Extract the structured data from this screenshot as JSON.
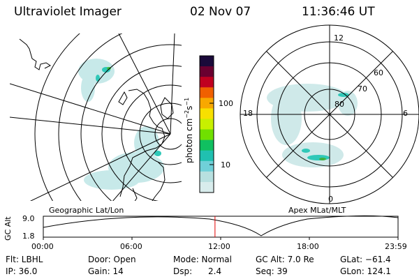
{
  "header": {
    "title": "Ultraviolet Imager",
    "date": "02 Nov 07",
    "time": "11:36:46 UT"
  },
  "left_panel": {
    "caption": "Geographic Lat/Lon"
  },
  "right_panel": {
    "caption": "Apex MLat/MLT",
    "lat_labels": [
      "80",
      "70",
      "60"
    ],
    "mlt_labels": {
      "top": "12",
      "bottom": "0",
      "left": "18",
      "right": "6"
    }
  },
  "colorbar": {
    "unit_label": "photon cm",
    "unit_exp1": "−2",
    "unit_s": "s",
    "unit_exp2": "−1",
    "ticks": [
      "100",
      "10"
    ],
    "colors": [
      "#1a0a3a",
      "#6a0030",
      "#c00020",
      "#f06000",
      "#f8a800",
      "#f8e000",
      "#c8f000",
      "#70e000",
      "#10c060",
      "#20c0b0",
      "#70d0d8",
      "#b8e0e0",
      "#d8ecec"
    ]
  },
  "altitude_plot": {
    "ylabel": "GC Alt",
    "y_top": "9.0",
    "y_bottom": "1.8",
    "x_ticks": [
      "00:00",
      "06:00",
      "12:00",
      "18:00",
      "23:59"
    ],
    "current_time_fraction": 0.484
  },
  "status": {
    "flt": "Flt: LBHL",
    "ip": "IP: 36.0",
    "door": "Door: Open",
    "gain": "Gain: 14",
    "mode": "Mode: Normal",
    "dsp_label": "Dsp:",
    "dsp_value": "2.4",
    "gc_alt": "GC Alt: 7.0 Re",
    "seq": "Seq: 39",
    "glat": "GLat: −61.4",
    "glon": "GLon: 124.1"
  }
}
